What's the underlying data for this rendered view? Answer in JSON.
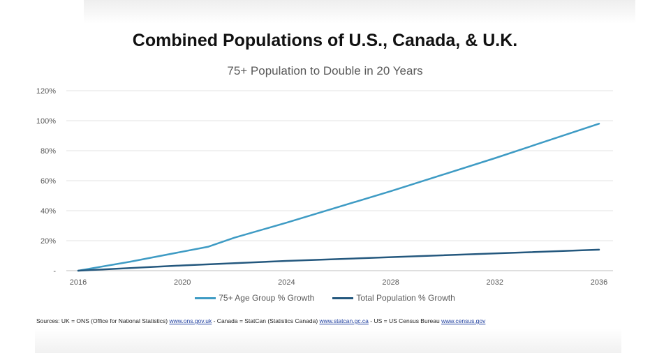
{
  "chart_data": {
    "type": "line",
    "title": "Combined Populations of U.S., Canada, & U.K.",
    "subtitle": "75+ Population to Double in 20 Years",
    "xlabel": "",
    "ylabel": "",
    "xlim": [
      2016,
      2036
    ],
    "ylim": [
      0,
      120
    ],
    "x_ticks": [
      "2016",
      "2020",
      "2024",
      "2028",
      "2032",
      "2036"
    ],
    "x_tick_values": [
      2016,
      2020,
      2024,
      2028,
      2032,
      2036
    ],
    "y_ticks": [
      "-",
      "20%",
      "40%",
      "60%",
      "80%",
      "100%",
      "120%"
    ],
    "y_tick_values": [
      0,
      20,
      40,
      60,
      80,
      100,
      120
    ],
    "grid": "horizontal",
    "legend": "bottom",
    "series": [
      {
        "name": "75+ Age Group % Growth",
        "color": "#3e9bc4",
        "x": [
          2016,
          2018,
          2021,
          2022,
          2024,
          2028,
          2032,
          2036
        ],
        "values": [
          0,
          6,
          16,
          22,
          32,
          53,
          75,
          98
        ]
      },
      {
        "name": "Total Population % Growth",
        "color": "#24587e",
        "x": [
          2016,
          2020,
          2024,
          2028,
          2032,
          2036
        ],
        "values": [
          0,
          3.5,
          6.5,
          9,
          11.5,
          14
        ]
      }
    ]
  },
  "sources": {
    "prefix": "Sources:  UK = ONS (Office for National Statistics) ",
    "uk_link": "www.ons.gov.uk",
    "canada_text": " - Canada = StatCan (Statistics Canada) ",
    "canada_link": "www.statcan.gc.ca",
    "us_text": " - US = US Census Bureau ",
    "us_link": "www.census.gov"
  }
}
